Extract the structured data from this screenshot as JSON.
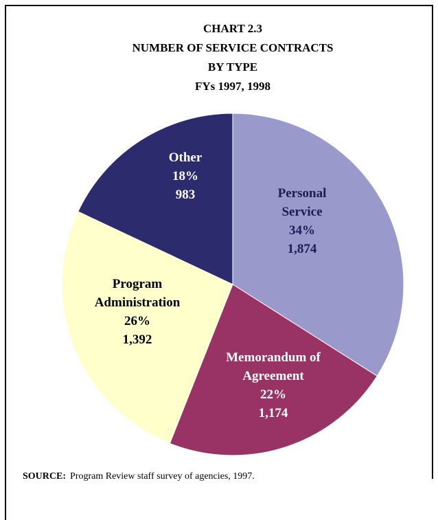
{
  "chart_data": {
    "type": "pie",
    "title": [
      "CHART 2.3",
      "NUMBER OF SERVICE CONTRACTS",
      "BY TYPE",
      "FYs 1997, 1998"
    ],
    "categories": [
      "Personal Service",
      "Memorandum of Agreement",
      "Program Administration",
      "Other"
    ],
    "values": [
      34,
      22,
      26,
      18
    ],
    "value_labels": [
      "34%",
      "22%",
      "26%",
      "18%"
    ],
    "counts": [
      1874,
      1174,
      1392,
      983
    ],
    "count_labels": [
      "1,874",
      "1,174",
      "1,392",
      "983"
    ],
    "colors": [
      "#9999cc",
      "#993366",
      "#ffffcc",
      "#2b2b6e"
    ],
    "label_colors": [
      "#1c1c50",
      "#ffffff",
      "#000000",
      "#ffffff"
    ],
    "source_label": "SOURCE:",
    "source": "Program Review staff survey of agencies, 1997."
  }
}
